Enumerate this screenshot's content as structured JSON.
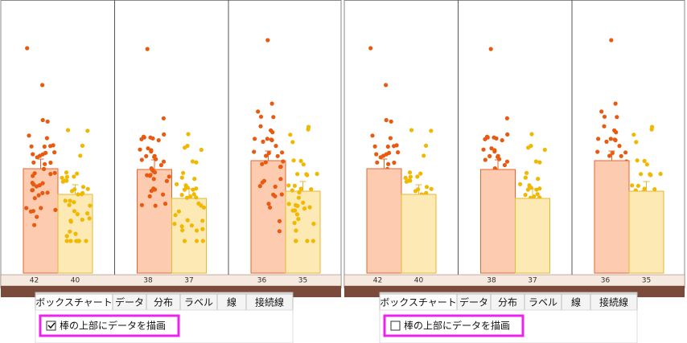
{
  "panels": [
    {
      "groups": [
        {
          "counts": [
            42,
            40
          ]
        },
        {
          "counts": [
            38,
            37
          ]
        },
        {
          "counts": [
            36,
            35
          ]
        }
      ],
      "tabs": [
        "ボックスチャート",
        "データ",
        "分布",
        "ラベル",
        "線",
        "接続線"
      ],
      "checkbox": {
        "label": "棒の上部にデータを描画",
        "checked": true
      }
    },
    {
      "groups": [
        {
          "counts": [
            42,
            40
          ]
        },
        {
          "counts": [
            38,
            37
          ]
        },
        {
          "counts": [
            36,
            35
          ]
        }
      ],
      "tabs": [
        "ボックスチャート",
        "データ",
        "分布",
        "ラベル",
        "線",
        "接続線"
      ],
      "checkbox": {
        "label": "棒の上部にデータを描画",
        "checked": false
      }
    }
  ]
}
